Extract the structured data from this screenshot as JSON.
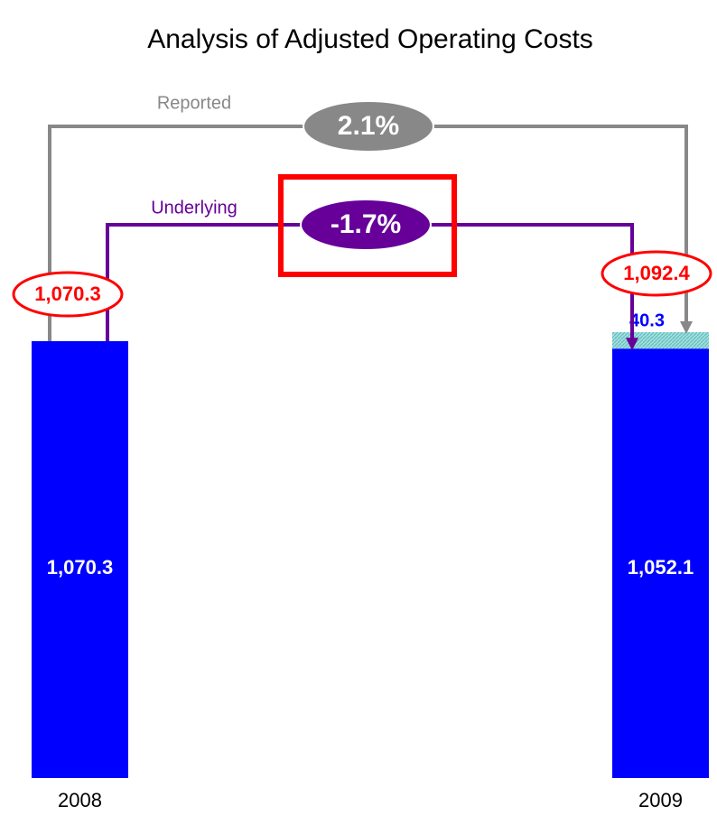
{
  "chart_data": {
    "type": "bar",
    "stacked": true,
    "title": "Analysis of Adjusted Operating Costs",
    "categories": [
      "2008",
      "2009"
    ],
    "series": [
      {
        "color": "#0000ff",
        "values": [
          1070.3,
          1052.1
        ],
        "value_labels": [
          "1,070.3",
          "1,052.1"
        ]
      },
      {
        "color": "#9fdede",
        "values": [
          null,
          40.3
        ],
        "value_labels": [
          null,
          "40.3"
        ]
      }
    ],
    "totals": {
      "color": "#ff0000",
      "values": [
        1070.3,
        1092.4
      ],
      "value_labels": [
        "1,070.3",
        "1,092.4"
      ]
    },
    "comparisons": [
      {
        "label": "Reported",
        "value": 2.1,
        "value_label": "2.1%",
        "color": "#888888"
      },
      {
        "label": "Underlying",
        "value": -1.7,
        "value_label": "-1.7%",
        "color": "#660099",
        "highlight": "#ff0000"
      }
    ]
  }
}
